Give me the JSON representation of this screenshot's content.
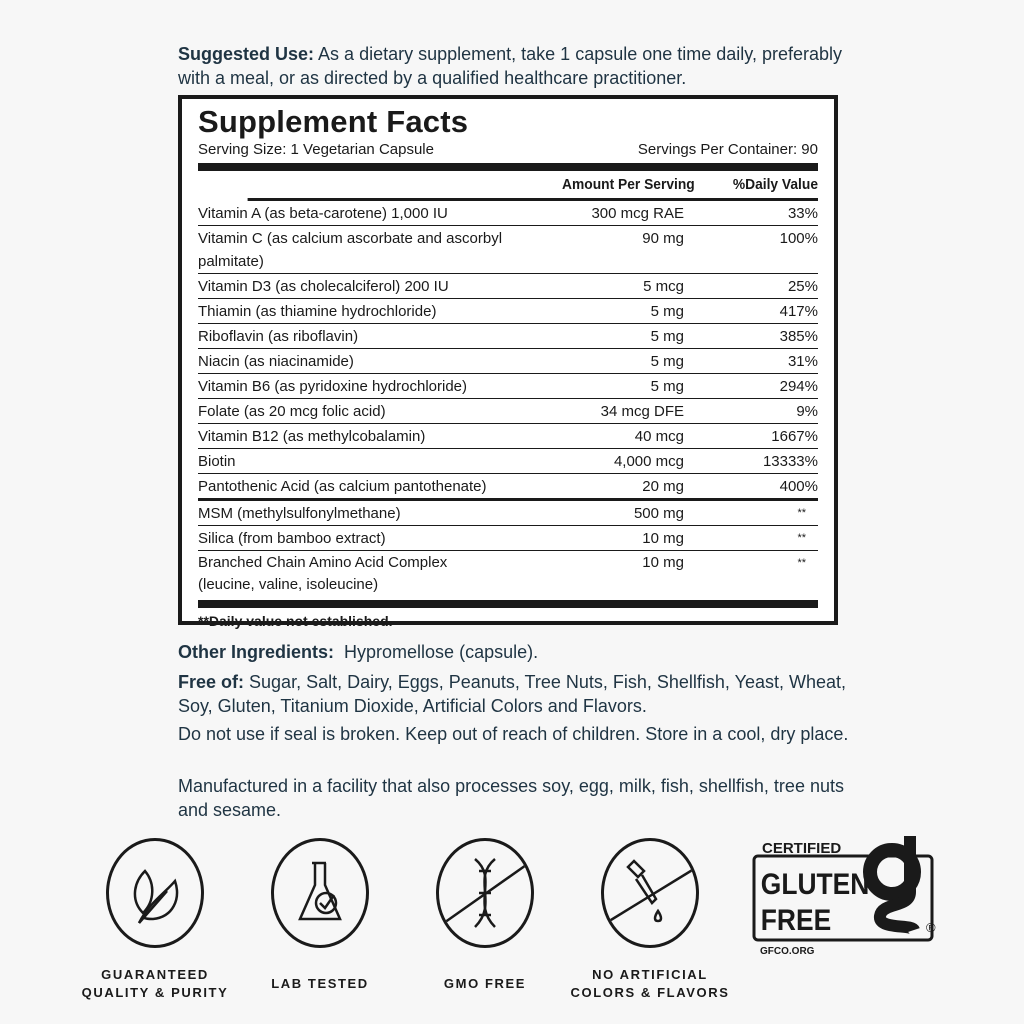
{
  "suggested_use": {
    "label": "Suggested Use:",
    "text": "As a dietary supplement, take 1 capsule one time daily, preferably with a meal, or as directed by a qualified healthcare practitioner."
  },
  "facts": {
    "title": "Supplement Facts",
    "serving_size": "Serving Size: 1 Vegetarian Capsule",
    "servings_per_container": "Servings Per Container: 90",
    "col_amount": "Amount Per Serving",
    "col_dv": "%Daily Value",
    "rows": [
      {
        "name": "Vitamin A (as beta-carotene) 1,000 IU",
        "amount": "300 mcg RAE",
        "dv": "33%"
      },
      {
        "name": "Vitamin C (as calcium ascorbate and ascorbyl palmitate)",
        "amount": "90 mg",
        "dv": "100%"
      },
      {
        "name": "Vitamin D3 (as cholecalciferol) 200 IU",
        "amount": "5 mcg",
        "dv": "25%"
      },
      {
        "name": "Thiamin (as thiamine hydrochloride)",
        "amount": "5 mg",
        "dv": "417%"
      },
      {
        "name": "Riboflavin (as riboflavin)",
        "amount": "5 mg",
        "dv": "385%"
      },
      {
        "name": "Niacin (as niacinamide)",
        "amount": "5 mg",
        "dv": "31%"
      },
      {
        "name": "Vitamin B6 (as pyridoxine hydrochloride)",
        "amount": "5 mg",
        "dv": "294%"
      },
      {
        "name": "Folate (as 20 mcg folic acid)",
        "amount": "34 mcg DFE",
        "dv": "9%"
      },
      {
        "name": "Vitamin B12 (as methylcobalamin)",
        "amount": "40 mcg",
        "dv": "1667%"
      },
      {
        "name": "Biotin",
        "amount": "4,000 mcg",
        "dv": "13333%"
      },
      {
        "name": "Pantothenic Acid (as calcium pantothenate)",
        "amount": "20 mg",
        "dv": "400%"
      }
    ],
    "rows2": [
      {
        "name": "MSM (methylsulfonylmethane)",
        "amount": "500 mg",
        "dv": "**"
      },
      {
        "name": "Silica (from bamboo extract)",
        "amount": "10 mg",
        "dv": "**"
      },
      {
        "name": "Branched Chain Amino Acid Complex",
        "name2": "(leucine, valine, isoleucine)",
        "amount": "10 mg",
        "dv": "**"
      }
    ],
    "footnote": "**Daily value not established."
  },
  "other_ingredients": {
    "label": "Other Ingredients:",
    "text": "Hypromellose (capsule)."
  },
  "free_of": {
    "label": "Free of:",
    "text": "Sugar, Salt, Dairy, Eggs, Peanuts, Tree Nuts, Fish, Shellfish, Yeast, Wheat, Soy, Gluten, Titanium Dioxide, Artificial Colors and Flavors."
  },
  "seal_warning": "Do not use if seal is broken. Keep out of reach of children. Store in a cool, dry place.",
  "manufactured": "Manufactured in a facility that also processes soy, egg, milk, fish, shellfish, tree nuts and sesame.",
  "badges": [
    {
      "icon": "leaf-icon",
      "label1": "GUARANTEED",
      "label2": "QUALITY & PURITY"
    },
    {
      "icon": "flask-check-icon",
      "label1": "LAB TESTED",
      "label2": ""
    },
    {
      "icon": "dna-crossed-icon",
      "label1": "GMO FREE",
      "label2": ""
    },
    {
      "icon": "dropper-crossed-icon",
      "label1": "NO ARTIFICIAL",
      "label2": "COLORS & FLAVORS"
    }
  ],
  "gluten_free_logo": {
    "top": "CERTIFIED",
    "line1": "GLUTEN",
    "line2": "FREE",
    "site": "GFCO.ORG"
  },
  "colors": {
    "text": "#1f3443",
    "background": "#f7f7f7",
    "label_ink": "#1a1a1a"
  }
}
